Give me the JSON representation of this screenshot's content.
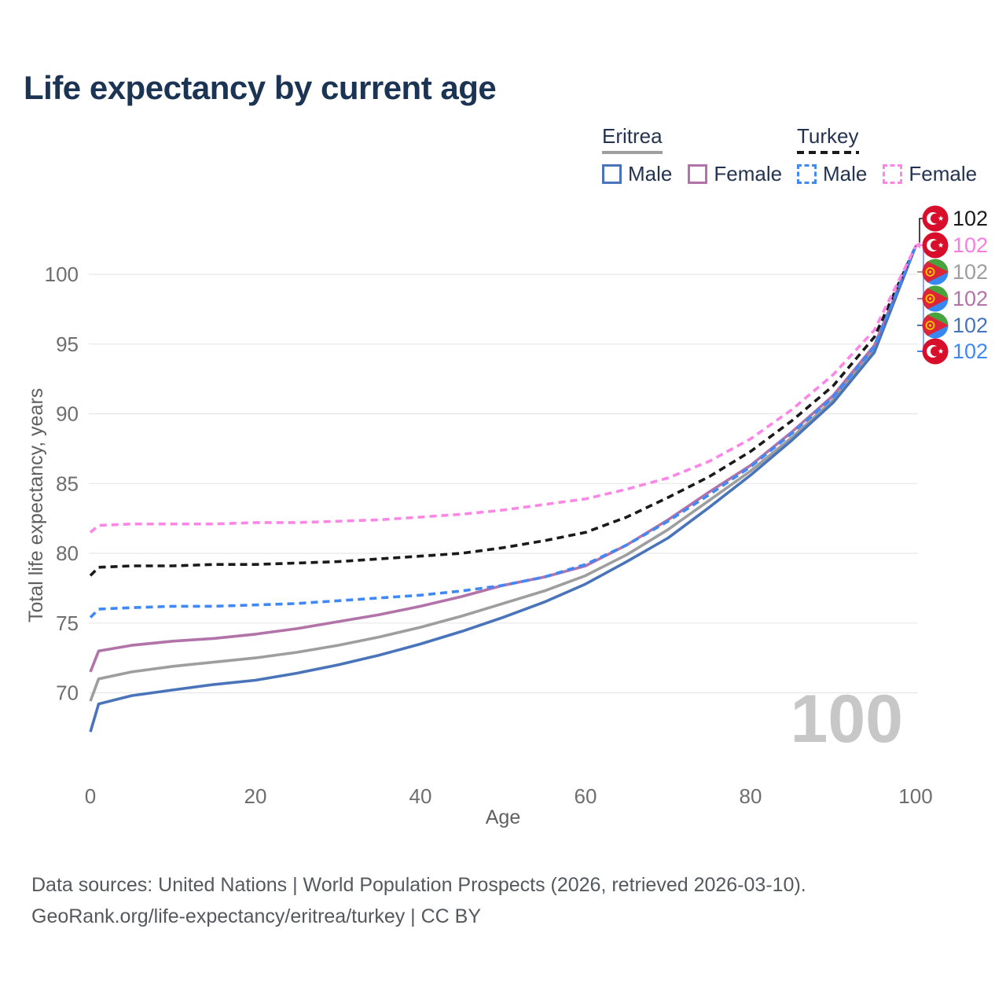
{
  "title": "Life expectancy by current age",
  "legend": {
    "groups": [
      {
        "country": "Eritrea",
        "style": "solid",
        "underline_color": "#9e9e9e",
        "items": [
          {
            "label": "Male",
            "color": "#4a74ba",
            "dash": false
          },
          {
            "label": "Female",
            "color": "#b273a9",
            "dash": false
          }
        ]
      },
      {
        "country": "Turkey",
        "style": "dashed",
        "underline_color": "#1a1a1a",
        "items": [
          {
            "label": "Male",
            "color": "#3f88f6",
            "dash": true
          },
          {
            "label": "Female",
            "color": "#fb86e6",
            "dash": true
          }
        ]
      }
    ]
  },
  "chart_data": {
    "type": "line",
    "title": "Life expectancy by current age",
    "xlabel": "Age",
    "ylabel": "Total life expectancy, years",
    "xlim": [
      0,
      100
    ],
    "ylim": [
      66,
      103
    ],
    "xticks": [
      0,
      20,
      40,
      60,
      80,
      100
    ],
    "yticks": [
      70,
      75,
      80,
      85,
      90,
      95,
      100
    ],
    "grid": "horizontal",
    "legend_position": "top-right",
    "x": [
      0,
      1,
      5,
      10,
      15,
      20,
      25,
      30,
      35,
      40,
      45,
      50,
      55,
      60,
      65,
      70,
      75,
      80,
      85,
      90,
      95,
      100
    ],
    "series": [
      {
        "id": "eritrea-total",
        "name": "Eritrea",
        "country": "Eritrea",
        "sex": "Both sexes",
        "color": "#9e9e9e",
        "dash": false,
        "values": [
          69.4,
          71.0,
          71.5,
          71.9,
          72.2,
          72.5,
          72.9,
          73.4,
          74.0,
          74.7,
          75.5,
          76.4,
          77.3,
          78.4,
          79.9,
          81.7,
          83.8,
          85.9,
          88.3,
          91.0,
          94.6,
          102
        ]
      },
      {
        "id": "eritrea-female",
        "name": "Eritrea Female",
        "country": "Eritrea",
        "sex": "Female",
        "color": "#b273a9",
        "dash": false,
        "values": [
          71.5,
          73.0,
          73.4,
          73.7,
          73.9,
          74.2,
          74.6,
          75.1,
          75.6,
          76.2,
          76.9,
          77.7,
          78.3,
          79.1,
          80.6,
          82.4,
          84.4,
          86.3,
          88.7,
          91.3,
          94.9,
          102
        ]
      },
      {
        "id": "eritrea-male",
        "name": "Eritrea Male",
        "country": "Eritrea",
        "sex": "Male",
        "color": "#4a74ba",
        "dash": false,
        "values": [
          67.2,
          69.2,
          69.8,
          70.2,
          70.6,
          70.9,
          71.4,
          72.0,
          72.7,
          73.5,
          74.4,
          75.4,
          76.5,
          77.8,
          79.4,
          81.1,
          83.3,
          85.6,
          88.1,
          90.8,
          94.4,
          102
        ]
      },
      {
        "id": "turkey-total",
        "name": "Turkey",
        "country": "Turkey",
        "sex": "Both sexes",
        "color": "#1a1a1a",
        "dash": true,
        "values": [
          78.4,
          79.0,
          79.1,
          79.1,
          79.2,
          79.2,
          79.3,
          79.4,
          79.6,
          79.8,
          80.0,
          80.4,
          80.9,
          81.5,
          82.6,
          84.0,
          85.5,
          87.3,
          89.5,
          92.0,
          95.5,
          102
        ]
      },
      {
        "id": "turkey-male",
        "name": "Turkey Male",
        "country": "Turkey",
        "sex": "Male",
        "color": "#3f88f6",
        "dash": true,
        "values": [
          75.4,
          76.0,
          76.1,
          76.2,
          76.2,
          76.3,
          76.4,
          76.6,
          76.8,
          77.0,
          77.3,
          77.7,
          78.3,
          79.2,
          80.6,
          82.3,
          84.2,
          86.2,
          88.6,
          91.2,
          94.8,
          102
        ]
      },
      {
        "id": "turkey-female",
        "name": "Turkey Female",
        "country": "Turkey",
        "sex": "Female",
        "color": "#fb86e6",
        "dash": true,
        "values": [
          81.5,
          82.0,
          82.1,
          82.1,
          82.1,
          82.2,
          82.2,
          82.3,
          82.4,
          82.6,
          82.8,
          83.1,
          83.5,
          83.9,
          84.6,
          85.4,
          86.6,
          88.2,
          90.3,
          92.8,
          96.0,
          102
        ]
      }
    ],
    "end_labels": [
      {
        "flag": "turkey",
        "series": "Turkey",
        "value": "102",
        "color": "#1a1a1a"
      },
      {
        "flag": "turkey",
        "series": "Turkey Female",
        "value": "102",
        "color": "#f77de2"
      },
      {
        "flag": "eritrea",
        "series": "Eritrea",
        "value": "102",
        "color": "#9e9e9e"
      },
      {
        "flag": "eritrea",
        "series": "Eritrea Female",
        "value": "102",
        "color": "#b273a9"
      },
      {
        "flag": "eritrea",
        "series": "Eritrea Male",
        "value": "102",
        "color": "#4a74ba"
      },
      {
        "flag": "turkey",
        "series": "Turkey Male",
        "value": "102",
        "color": "#3f88f6"
      }
    ],
    "watermark": "100"
  },
  "footer": {
    "line1": "Data sources: United Nations | World Population Prospects (2026, retrieved 2026-03-10).",
    "line2": "GeoRank.org/life-expectancy/eritrea/turkey | CC BY"
  }
}
